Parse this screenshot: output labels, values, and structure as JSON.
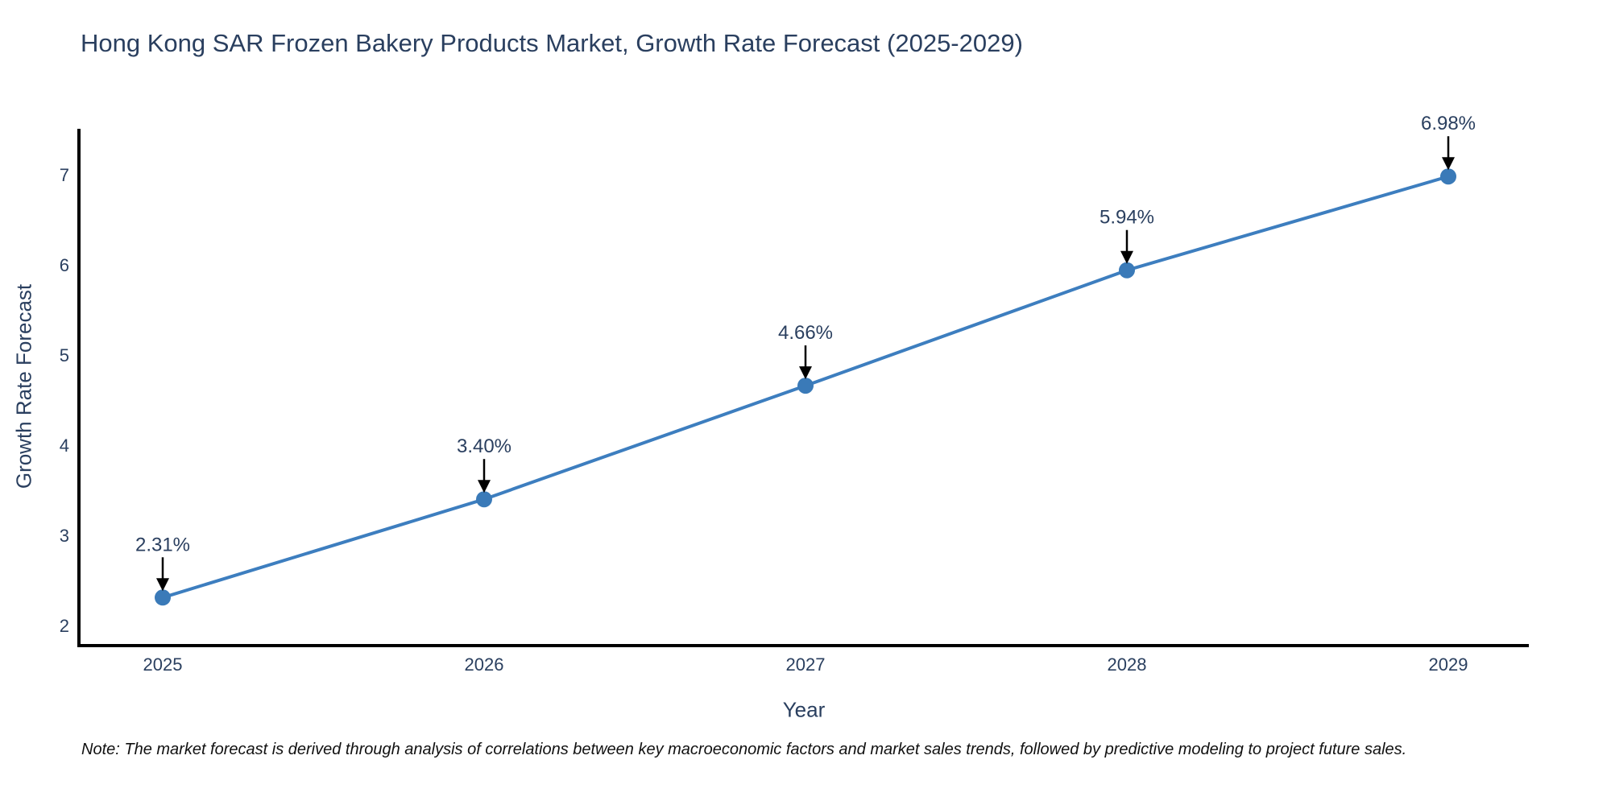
{
  "title": "Hong Kong SAR Frozen Bakery Products Market, Growth Rate Forecast (2025-2029)",
  "note": "Note: The market forecast is derived through analysis of correlations between key macroeconomic factors and market sales trends, followed by predictive modeling to project future sales.",
  "colors": {
    "title_text": "#2a3f5f",
    "axis_text": "#2a3f5f",
    "annotation_text": "#2a3f5f",
    "line": "#3d7ebf",
    "marker": "#3a7ab8",
    "axis_line": "#000000",
    "arrow": "#000000",
    "background": "#ffffff"
  },
  "chart_data": {
    "type": "line",
    "title": "Hong Kong SAR Frozen Bakery Products Market, Growth Rate Forecast (2025-2029)",
    "xlabel": "Year",
    "ylabel": "Growth Rate Forecast",
    "x": [
      2025,
      2026,
      2027,
      2028,
      2029
    ],
    "xticks": [
      "2025",
      "2026",
      "2027",
      "2028",
      "2029"
    ],
    "values": [
      2.31,
      3.4,
      4.66,
      5.94,
      6.98
    ],
    "point_labels": [
      "2.31%",
      "3.40%",
      "4.66%",
      "5.94%",
      "6.98%"
    ],
    "yticks": [
      2,
      3,
      4,
      5,
      6,
      7
    ],
    "ylim": [
      1.78,
      7.51
    ],
    "grid": false,
    "legend": "none",
    "marker": "circle",
    "annotation_style": "black-arrow-down-to-point"
  }
}
